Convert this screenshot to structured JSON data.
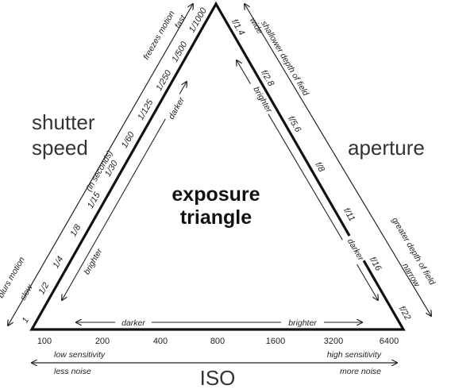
{
  "title_line1": "exposure",
  "title_line2": "triangle",
  "shutter": {
    "label_line1": "shutter",
    "label_line2": "speed",
    "values": [
      "1",
      "1/2",
      "1/4",
      "1/8",
      "1/15",
      "1/30",
      "1/60",
      "1/125",
      "1/250",
      "1/500",
      "1/1000"
    ],
    "unit_note": "(in seconds)",
    "inner_left": "brighter",
    "inner_right": "darker",
    "outer_left_top": "blurs motion",
    "outer_left_bottom": "slow",
    "outer_right_top": "freezes motion",
    "outer_right_bottom": "fast"
  },
  "aperture": {
    "label": "aperture",
    "values": [
      "f/1.4",
      "f/2.8",
      "f/5.6",
      "f/8",
      "f/11",
      "f/16",
      "f/22"
    ],
    "inner_top": "brighter",
    "inner_bottom": "darker",
    "outer_top_a": "shallower depth of field",
    "outer_top_b": "wide",
    "outer_bottom_a": "greater depth of field",
    "outer_bottom_b": "narrow"
  },
  "iso": {
    "label": "ISO",
    "values": [
      "100",
      "200",
      "400",
      "800",
      "1600",
      "3200",
      "6400"
    ],
    "inner_left": "darker",
    "inner_right": "brighter",
    "left_line1": "low sensitivity",
    "left_line2": "less noise",
    "right_line1": "high sensitivity",
    "right_line2": "more noise"
  },
  "colors": {
    "line": "#111111",
    "text": "#222222"
  }
}
